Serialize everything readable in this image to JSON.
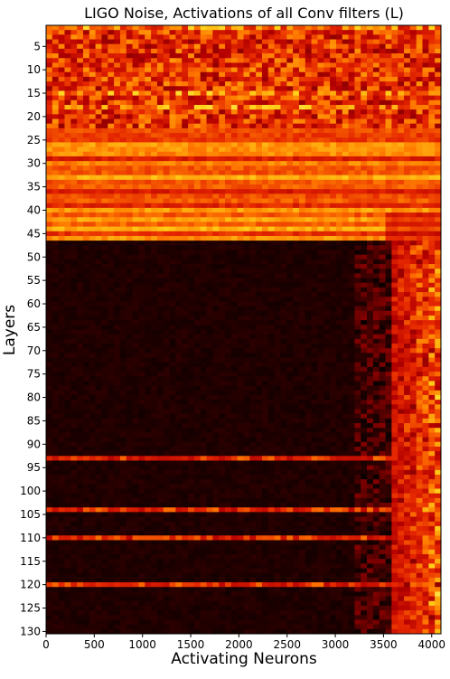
{
  "chart_data": {
    "type": "heatmap",
    "title": "LIGO Noise, Activations of all Conv filters (L)",
    "xlabel": "Activating Neurons",
    "ylabel": "Layers",
    "xlim": [
      0,
      4096
    ],
    "ylim": [
      130.5,
      0.5
    ],
    "x_ticks": [
      0,
      500,
      1000,
      1500,
      2000,
      2500,
      3000,
      3500,
      4000
    ],
    "y_ticks": [
      5,
      10,
      15,
      20,
      25,
      30,
      35,
      40,
      45,
      50,
      55,
      60,
      65,
      70,
      75,
      80,
      85,
      90,
      95,
      100,
      105,
      110,
      115,
      120,
      125,
      130
    ],
    "colormap": "hot",
    "colormap_stops": [
      "#0b0000",
      "#5a0000",
      "#b40000",
      "#e52600",
      "#ff7a00",
      "#ffd21a",
      "#ffff8a"
    ],
    "regions": [
      {
        "layers": [
          1,
          22
        ],
        "pattern": "dense noisy activation across all neurons",
        "level": 0.45
      },
      {
        "layers": [
          23,
          46
        ],
        "pattern": "bright horizontal bands across all neurons",
        "level": 0.55
      },
      {
        "layers": [
          47,
          130
        ],
        "pattern": "dark except right edge (neurons ~3600-4096) strongly active",
        "level": 0.05
      }
    ],
    "grid": false,
    "legend": "none"
  }
}
